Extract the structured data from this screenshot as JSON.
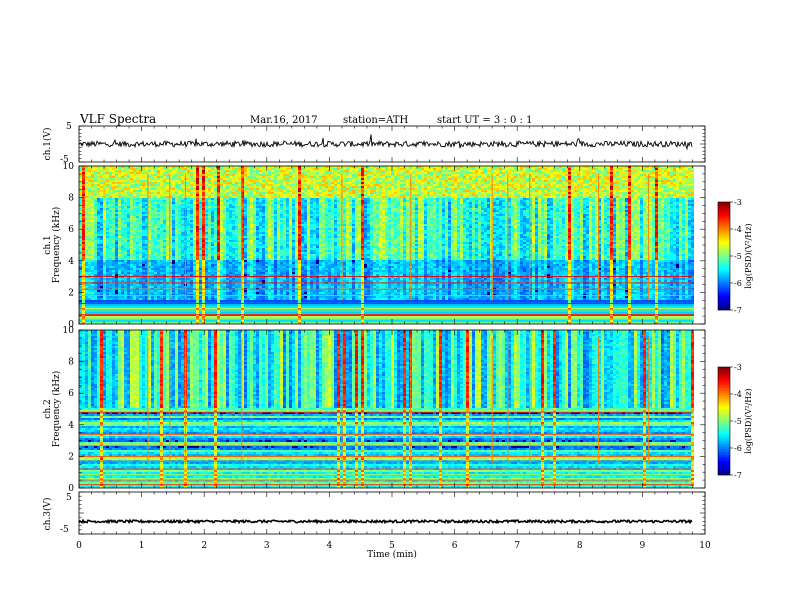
{
  "header": {
    "title": "VLF  Spectra",
    "date": "Mar.16, 2017",
    "station": "station=ATH",
    "start_ut": "start  UT  =   3  : 0   : 1"
  },
  "chart_data": [
    {
      "type": "line",
      "name": "ch1-waveform",
      "ylabel": "ch.1(V)",
      "ylim": [
        -5,
        5
      ],
      "yticks": [
        "5",
        "-5"
      ],
      "xlim": [
        0,
        10
      ],
      "baseline": 0.0,
      "data_end": 9.8
    },
    {
      "type": "heatmap",
      "name": "ch1-spectrogram",
      "ylabel": "ch.1\nFrequency  (kHz)",
      "ylim": [
        0,
        10
      ],
      "yticks": [
        "10",
        "8",
        "6",
        "4",
        "2",
        "0"
      ],
      "xlim": [
        0,
        10
      ],
      "data_end": 9.8,
      "colorbar": {
        "label": "log(PSD)(V²/Hz)",
        "range": [
          -7,
          -3
        ],
        "ticks": [
          "-3",
          "-4",
          "-5",
          "-6",
          "-7"
        ]
      }
    },
    {
      "type": "heatmap",
      "name": "ch2-spectrogram",
      "ylabel": "ch.2\nFrequency  (kHz)",
      "ylim": [
        0,
        10
      ],
      "yticks": [
        "10",
        "8",
        "6",
        "4",
        "2",
        "0"
      ],
      "xlim": [
        0,
        10
      ],
      "data_end": 9.8,
      "colorbar": {
        "label": "log(PSD)(V²/Hz)",
        "range": [
          -7,
          -3
        ],
        "ticks": [
          "-3",
          "-4",
          "-5",
          "-6",
          "-7"
        ]
      }
    },
    {
      "type": "line",
      "name": "ch3-waveform",
      "ylabel": "ch.3(V)",
      "ylim": [
        -5,
        5
      ],
      "yticks": [
        "5",
        "-5"
      ],
      "xlim": [
        0,
        10
      ],
      "baseline": -2.0,
      "data_end": 9.8
    }
  ],
  "xaxis": {
    "label": "Time  (min)",
    "ticks": [
      "0",
      "1",
      "2",
      "3",
      "4",
      "5",
      "6",
      "7",
      "8",
      "9",
      "10"
    ]
  }
}
